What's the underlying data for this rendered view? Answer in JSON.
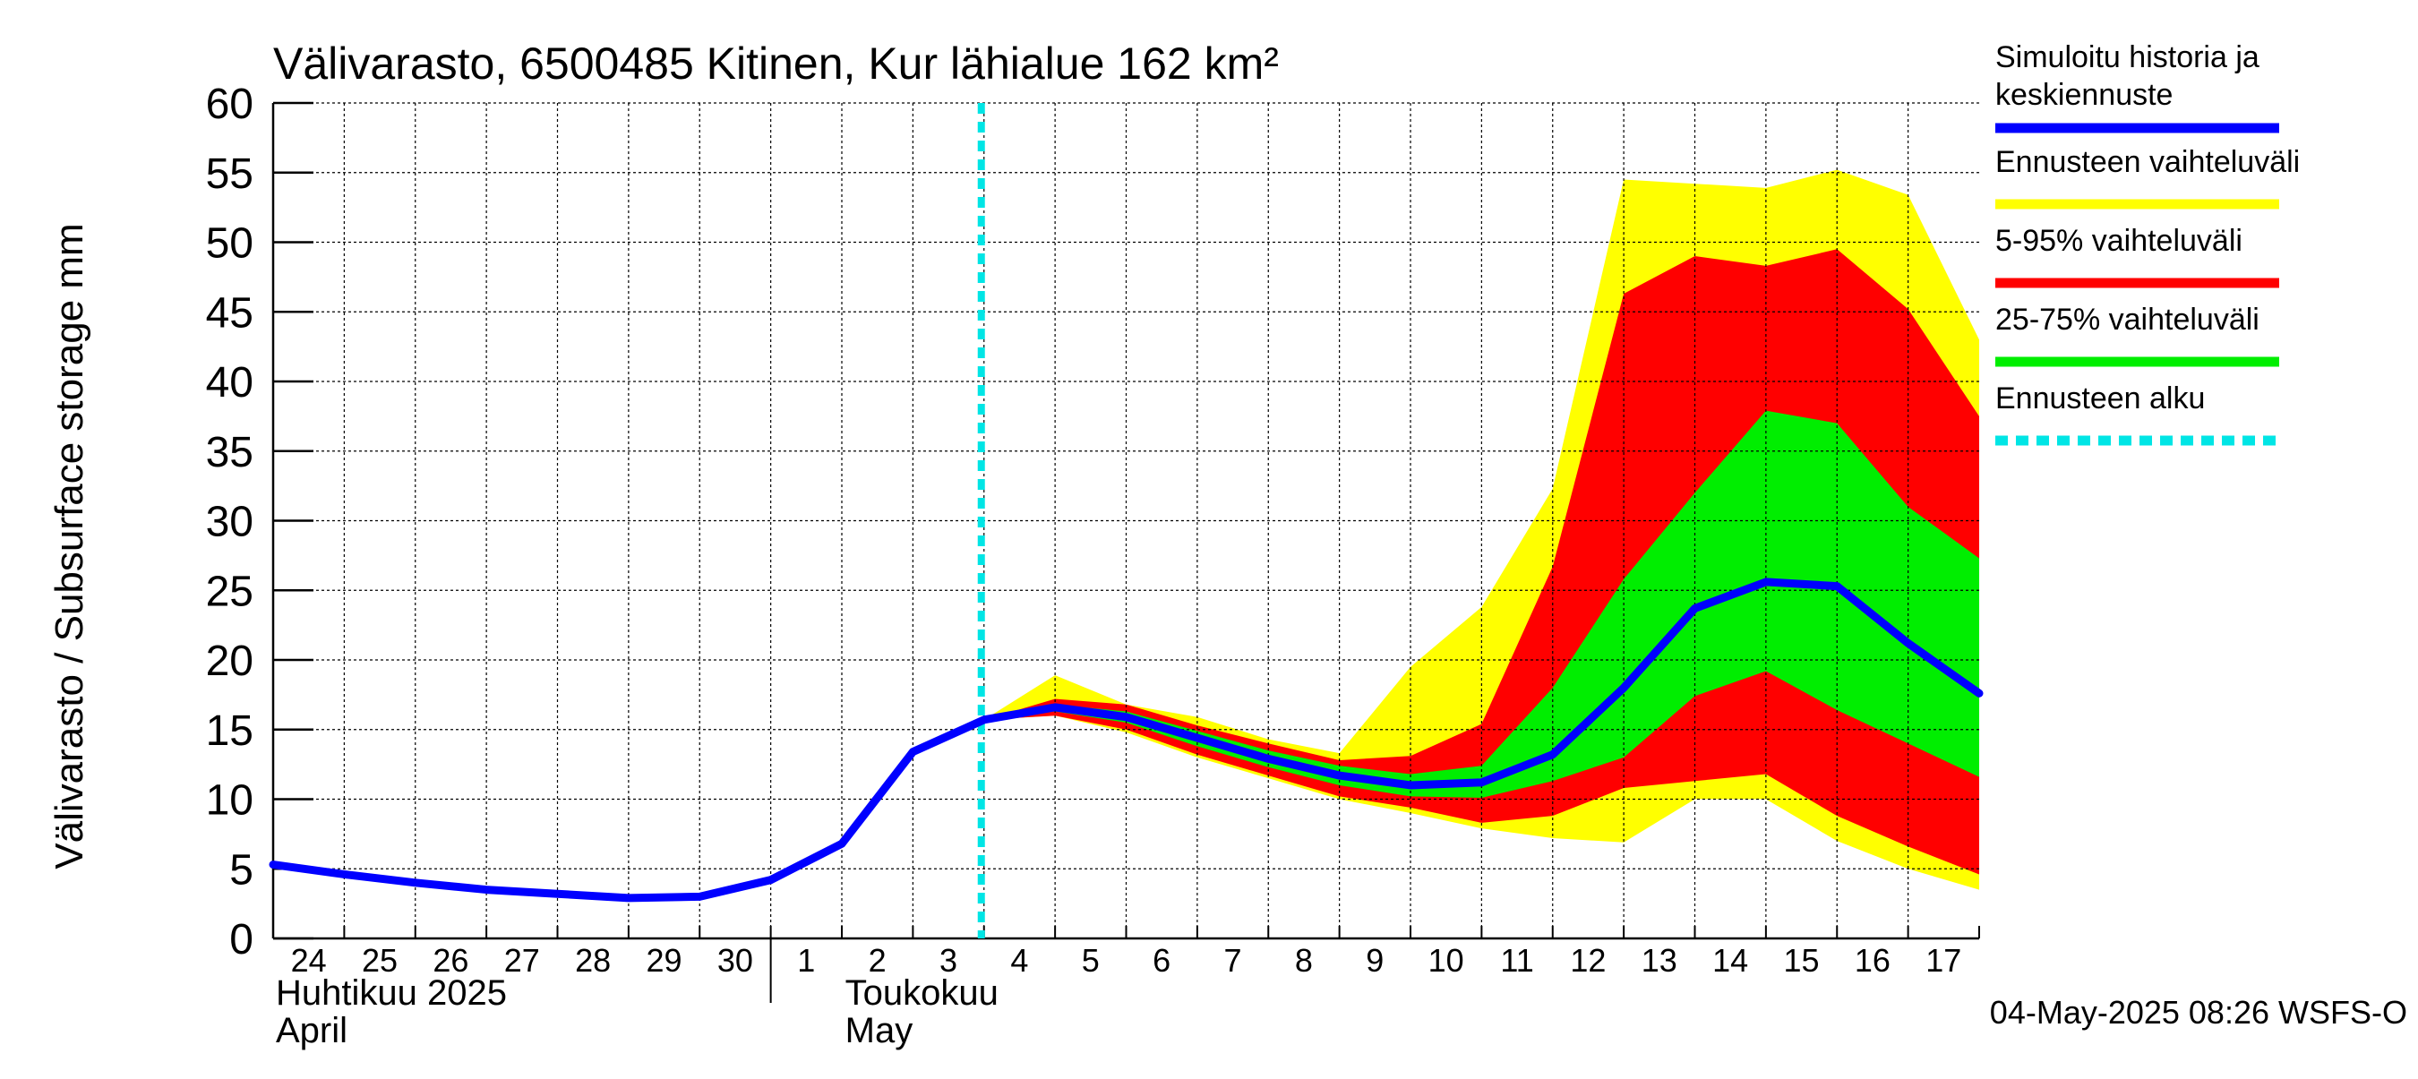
{
  "chart_data": {
    "type": "area",
    "title": "Välivarasto, 6500485 Kitinen, Kur lähialue 162 km²",
    "ylabel": "Välivarasto / Subsurface storage  mm",
    "xlabel": "",
    "ylim": [
      0,
      60
    ],
    "yticks": [
      0,
      5,
      10,
      15,
      20,
      25,
      30,
      35,
      40,
      45,
      50,
      55,
      60
    ],
    "x_start": "2025-04-24",
    "x_end": "2025-05-18",
    "day_labels": [
      "24",
      "25",
      "26",
      "27",
      "28",
      "29",
      "30",
      "1",
      "2",
      "3",
      "4",
      "5",
      "6",
      "7",
      "8",
      "9",
      "10",
      "11",
      "12",
      "13",
      "14",
      "15",
      "16",
      "17"
    ],
    "month_labels": [
      {
        "line1": "Huhtikuu  2025",
        "line2": "April",
        "date": "2025-04-24"
      },
      {
        "line1": "Toukokuu",
        "line2": "May",
        "date": "2025-05-01"
      }
    ],
    "grid": true,
    "legend_position": "right",
    "forecast_start": "2025-05-04",
    "timestamp": "04-May-2025 08:26 WSFS-O",
    "colors": {
      "median": "#0000ff",
      "range": "#ffff00",
      "p5_95": "#ff0000",
      "p25_75": "#00ee00",
      "forecast_start": "#00e5e5",
      "grid": "#000000"
    },
    "legend": [
      {
        "key": "median",
        "label": "Simuloitu historia ja",
        "label2": "keskiennuste",
        "color": "#0000ff",
        "dashed": false
      },
      {
        "key": "range",
        "label": "Ennusteen vaihteluväli",
        "label2": "",
        "color": "#ffff00",
        "dashed": false
      },
      {
        "key": "p5_95",
        "label": "5-95% vaihteluväli",
        "label2": "",
        "color": "#ff0000",
        "dashed": false
      },
      {
        "key": "p25_75",
        "label": "25-75% vaihteluväli",
        "label2": "",
        "color": "#00ee00",
        "dashed": false
      },
      {
        "key": "forecast_start",
        "label": "Ennusteen alku",
        "label2": "",
        "color": "#00e5e5",
        "dashed": true
      }
    ],
    "history": {
      "x": [
        "2025-04-24",
        "2025-04-25",
        "2025-04-26",
        "2025-04-27",
        "2025-04-28",
        "2025-04-29",
        "2025-04-30",
        "2025-05-01",
        "2025-05-02",
        "2025-05-03",
        "2025-05-04"
      ],
      "y": [
        5.3,
        4.6,
        4.0,
        3.5,
        3.2,
        2.9,
        3.0,
        4.2,
        6.8,
        13.4,
        15.7
      ]
    },
    "forecast": {
      "x": [
        "2025-05-04",
        "2025-05-05",
        "2025-05-06",
        "2025-05-07",
        "2025-05-08",
        "2025-05-09",
        "2025-05-10",
        "2025-05-11",
        "2025-05-12",
        "2025-05-13",
        "2025-05-14",
        "2025-05-15",
        "2025-05-16",
        "2025-05-17",
        "2025-05-18"
      ],
      "min": [
        15.7,
        16.0,
        14.8,
        13.0,
        11.5,
        10.0,
        9.0,
        7.9,
        7.2,
        6.9,
        10.0,
        10.0,
        7.0,
        5.0,
        3.5
      ],
      "p5": [
        15.7,
        16.0,
        15.0,
        13.2,
        11.7,
        10.2,
        9.4,
        8.3,
        8.8,
        10.8,
        11.3,
        11.8,
        8.8,
        6.6,
        4.6
      ],
      "p25": [
        15.7,
        16.3,
        15.5,
        13.8,
        12.3,
        11.0,
        10.2,
        10.1,
        11.3,
        13.0,
        17.4,
        19.2,
        16.4,
        14.0,
        11.6
      ],
      "median": [
        15.7,
        16.6,
        15.9,
        14.4,
        12.9,
        11.7,
        11.0,
        11.2,
        13.2,
        18.0,
        23.7,
        25.6,
        25.3,
        21.2,
        17.6
      ],
      "p75": [
        15.7,
        16.8,
        16.3,
        14.9,
        13.5,
        12.4,
        11.8,
        12.4,
        18.0,
        25.8,
        32.0,
        37.9,
        37.0,
        31.0,
        27.3
      ],
      "p95": [
        15.7,
        17.2,
        16.8,
        15.3,
        14.0,
        12.8,
        13.1,
        15.4,
        26.7,
        46.3,
        49.0,
        48.3,
        49.5,
        45.2,
        37.5
      ],
      "max": [
        15.7,
        18.9,
        16.8,
        15.9,
        14.3,
        13.3,
        19.5,
        23.8,
        32.3,
        54.5,
        54.2,
        53.9,
        55.2,
        53.4,
        43.0
      ]
    }
  }
}
